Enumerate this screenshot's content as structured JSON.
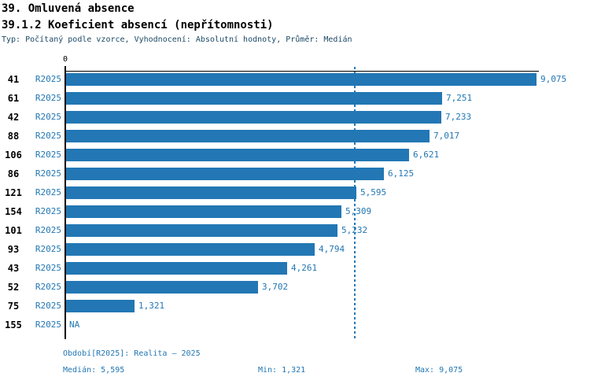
{
  "header": {
    "title": "39. Omluvená absence",
    "subtitle": "39.1.2 Koeficient absencí (nepřítomnosti)",
    "meta": "Typ: Počítaný podle vzorce, Vyhodnocení: Absolutní hodnoty, Průměr: Medián"
  },
  "chart_data": {
    "type": "bar",
    "orientation": "horizontal",
    "axis_zero_label": "0",
    "series_label": "R2025",
    "categories": [
      "41",
      "61",
      "42",
      "88",
      "106",
      "86",
      "121",
      "154",
      "101",
      "93",
      "43",
      "52",
      "75",
      "155"
    ],
    "values": [
      9075,
      7251,
      7233,
      7017,
      6621,
      6125,
      5595,
      5309,
      5232,
      4794,
      4261,
      3702,
      1321,
      null
    ],
    "value_labels": [
      "9,075",
      "7,251",
      "7,233",
      "7,017",
      "6,621",
      "6,125",
      "5,595",
      "5,309",
      "5,232",
      "4,794",
      "4,261",
      "3,702",
      "1,321",
      "NA"
    ],
    "xlim": [
      0,
      9120
    ],
    "median": 5595,
    "median_line": "dashed",
    "grid": "off",
    "bar_color": "#2277B4",
    "median_line_color": "#2277B4",
    "label_color": "#2277B4"
  },
  "footer": {
    "period": "Období[R2025]: Realita – 2025",
    "median": "Medián: 5,595",
    "min": "Min: 1,321",
    "max": "Max: 9,075"
  }
}
